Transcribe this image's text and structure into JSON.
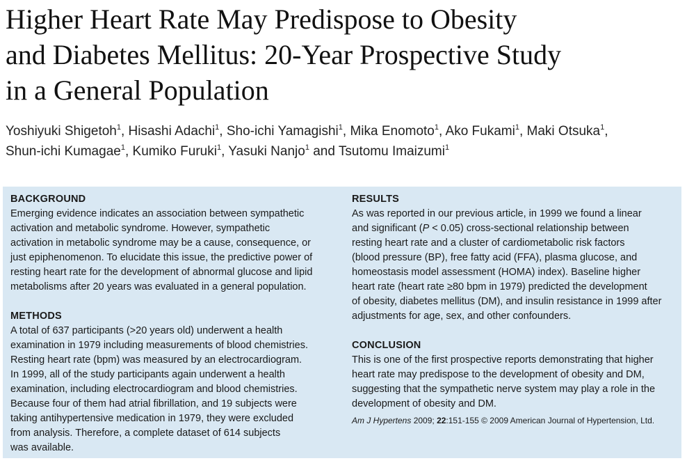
{
  "title_lines": [
    "Higher Heart Rate May Predispose to Obesity",
    "and Diabetes Mellitus: 20-Year Prospective Study",
    "in a General Population"
  ],
  "authors": [
    {
      "name": "Yoshiyuki Shigetoh",
      "sup": "1",
      "sep": ", "
    },
    {
      "name": "Hisashi Adachi",
      "sup": "1",
      "sep": ", "
    },
    {
      "name": "Sho-ichi Yamagishi",
      "sup": "1",
      "sep": ", "
    },
    {
      "name": "Mika Enomoto",
      "sup": "1",
      "sep": ", "
    },
    {
      "name": "Ako Fukami",
      "sup": "1",
      "sep": ", "
    },
    {
      "name": "Maki Otsuka",
      "sup": "1",
      "sep": ","
    },
    {
      "name": "Shun-ichi Kumagae",
      "sup": "1",
      "sep": ", "
    },
    {
      "name": "Kumiko Furuki",
      "sup": "1",
      "sep": ", "
    },
    {
      "name": "Yasuki Nanjo",
      "sup": "1",
      "sep": " and "
    },
    {
      "name": "Tsutomu Imaizumi",
      "sup": "1",
      "sep": ""
    }
  ],
  "abstract": {
    "background": {
      "heading": "BACKGROUND",
      "lines": [
        "Emerging evidence indicates an association between sympathetic",
        "activation and metabolic syndrome. However, sympathetic",
        "activation in metabolic syndrome may be a cause, consequence, or",
        "just epiphenomenon. To elucidate this issue, the predictive power of",
        "resting heart rate for the development of abnormal glucose and lipid",
        "metabolisms after 20 years was evaluated in a general population."
      ]
    },
    "methods": {
      "heading": "METHODS",
      "lines": [
        "A total of 637 participants (>20 years old) underwent a health",
        "examination in 1979 including measurements of blood chemistries.",
        "Resting heart rate (bpm) was measured by an electrocardiogram.",
        "In 1999, all of the study participants again underwent a health",
        "examination, including electrocardiogram and blood chemistries.",
        "Because four of them had atrial fibrillation, and 19 subjects were",
        "taking antihypertensive medication in 1979, they were excluded",
        "from analysis. Therefore, a complete dataset of 614 subjects",
        "was available."
      ]
    },
    "results": {
      "heading": "RESULTS",
      "line1": "As was reported in our previous article, in 1999 we found a linear",
      "line2_a": "and significant (",
      "line2_p": "P",
      "line2_b": " < 0.05) cross-sectional relationship between",
      "lines_rest": [
        "resting heart rate and a cluster of cardiometabolic risk factors",
        "(blood pressure (BP), free fatty acid (FFA), plasma glucose, and",
        "homeostasis model assessment (HOMA) index). Baseline higher",
        "heart rate (heart rate ≥80 bpm in 1979) predicted the development",
        "of obesity, diabetes mellitus (DM), and insulin resistance in 1999 after",
        "adjustments for age, sex, and other confounders."
      ]
    },
    "conclusion": {
      "heading": "CONCLUSION",
      "lines": [
        "This is one of the first prospective reports demonstrating that higher",
        "heart rate may predispose to the development of obesity and DM,",
        "suggesting that the sympathetic nerve system may play a role in the",
        "development of obesity and DM."
      ]
    },
    "citation": {
      "journal": "Am J Hypertens",
      "year": " 2009; ",
      "volume": "22",
      "rest": ":151-155 © 2009 American Journal of Hypertension, Ltd."
    }
  }
}
